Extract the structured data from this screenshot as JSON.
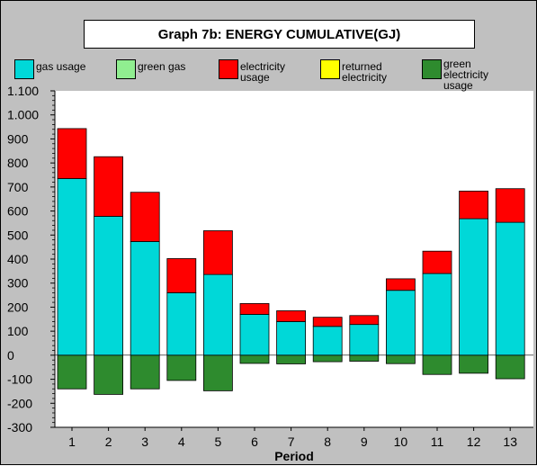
{
  "chart_data": {
    "type": "bar",
    "stacked": true,
    "title": "Graph 7b: ENERGY CUMULATIVE(GJ)",
    "xlabel": "Period",
    "ylabel": "",
    "ylim": [
      -300,
      1100
    ],
    "yticks": [
      -300,
      -200,
      -100,
      0,
      100,
      200,
      300,
      400,
      500,
      600,
      700,
      800,
      900,
      1000,
      1100
    ],
    "ytick_labels": [
      "-300",
      "-200",
      "-100",
      "0",
      "100",
      "200",
      "300",
      "400",
      "500",
      "600",
      "700",
      "800",
      "900",
      "1.000",
      "1.100"
    ],
    "categories": [
      "1",
      "2",
      "3",
      "4",
      "5",
      "6",
      "7",
      "8",
      "9",
      "10",
      "11",
      "12",
      "13"
    ],
    "legend_position": "top",
    "grid": false,
    "series": [
      {
        "name": "gas usage",
        "color": "#00d8d8",
        "values": [
          735,
          578,
          473,
          260,
          336,
          170,
          140,
          120,
          128,
          270,
          340,
          568,
          553
        ]
      },
      {
        "name": "green gas",
        "color": "#90ee90",
        "values": [
          0,
          0,
          0,
          0,
          0,
          0,
          0,
          0,
          0,
          0,
          0,
          0,
          0
        ]
      },
      {
        "name": "electricity usage",
        "color": "#ff0000",
        "values": [
          208,
          248,
          205,
          142,
          182,
          45,
          45,
          38,
          37,
          48,
          93,
          115,
          140
        ]
      },
      {
        "name": "returned electricity",
        "color": "#ffff00",
        "values": [
          0,
          0,
          0,
          0,
          0,
          0,
          0,
          0,
          0,
          0,
          0,
          0,
          0
        ]
      },
      {
        "name": "green electricity usage",
        "color": "#2e8b2e",
        "values": [
          -140,
          -163,
          -140,
          -105,
          -148,
          -34,
          -36,
          -27,
          -25,
          -35,
          -80,
          -75,
          -98
        ]
      }
    ]
  }
}
